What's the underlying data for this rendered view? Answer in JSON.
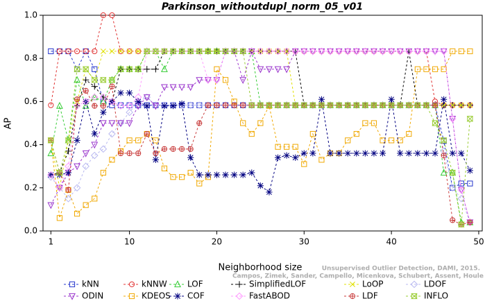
{
  "chart_data": {
    "type": "line",
    "title": "Parkinson_withoutdupl_norm_05_v01",
    "xlabel": "Neighborhood size",
    "ylabel": "AP",
    "annotations": [
      "Unsupervised Outlier Detection, DAMI, 2015.",
      "Campos, Zimek, Sander, Campello, Micenkova, Schubert, Assent, Houle"
    ],
    "x": [
      1,
      2,
      3,
      4,
      5,
      6,
      7,
      8,
      9,
      10,
      11,
      12,
      13,
      14,
      15,
      16,
      17,
      18,
      19,
      20,
      21,
      22,
      23,
      24,
      25,
      26,
      27,
      28,
      29,
      30,
      31,
      32,
      33,
      34,
      35,
      36,
      37,
      38,
      39,
      40,
      41,
      42,
      43,
      44,
      45,
      46,
      47,
      48,
      49
    ],
    "xlim": [
      0.1,
      50.4
    ],
    "ylim": [
      0,
      1
    ],
    "xticks": [
      1,
      10,
      20,
      30,
      40,
      50
    ],
    "yticks": [
      {
        "value": 0,
        "label": "0.0"
      },
      0.2,
      0.4,
      0.6,
      0.8,
      {
        "value": 1,
        "label": "1.0"
      }
    ],
    "series": [
      {
        "name": "kNN",
        "color": "#2233cc",
        "marker": "square",
        "values": [
          0.833,
          0.833,
          0.833,
          0.75,
          0.833,
          0.75,
          0.6,
          0.583,
          0.583,
          0.583,
          0.583,
          0.583,
          0.583,
          0.583,
          0.583,
          0.583,
          0.583,
          0.583,
          0.583,
          0.583,
          0.583,
          0.583,
          0.583,
          0.583,
          0.583,
          0.583,
          0.583,
          0.583,
          0.583,
          0.583,
          0.583,
          0.583,
          0.583,
          0.583,
          0.583,
          0.583,
          0.583,
          0.583,
          0.583,
          0.583,
          0.583,
          0.583,
          0.583,
          0.583,
          0.583,
          0.417,
          0.2,
          0.22,
          0.22
        ]
      },
      {
        "name": "kNNW",
        "color": "#e03030",
        "marker": "circle",
        "values": [
          0.583,
          0.833,
          0.833,
          0.833,
          0.833,
          0.833,
          1.0,
          1.0,
          0.833,
          0.833,
          0.833,
          0.833,
          0.833,
          0.833,
          0.833,
          0.833,
          0.833,
          0.833,
          0.833,
          0.833,
          0.833,
          0.833,
          0.833,
          0.833,
          0.833,
          0.833,
          0.833,
          0.833,
          0.833,
          0.833,
          0.833,
          0.833,
          0.833,
          0.833,
          0.833,
          0.833,
          0.833,
          0.833,
          0.833,
          0.833,
          0.833,
          0.833,
          0.833,
          0.833,
          0.6,
          0.583,
          0.583,
          0.583,
          0.583
        ]
      },
      {
        "name": "LOF",
        "color": "#33cc33",
        "marker": "triangle",
        "values": [
          0.36,
          0.58,
          0.42,
          0.7,
          0.58,
          0.62,
          0.6,
          0.7,
          0.75,
          0.75,
          0.75,
          0.833,
          0.833,
          0.75,
          0.833,
          0.833,
          0.833,
          0.833,
          0.833,
          0.833,
          0.833,
          0.833,
          0.833,
          0.833,
          0.583,
          0.583,
          0.583,
          0.583,
          0.583,
          0.583,
          0.583,
          0.583,
          0.583,
          0.583,
          0.583,
          0.583,
          0.583,
          0.583,
          0.583,
          0.583,
          0.583,
          0.583,
          0.583,
          0.583,
          0.583,
          0.27,
          0.27,
          0.04,
          0.04
        ]
      },
      {
        "name": "SimplifiedLOF",
        "color": "#000000",
        "marker": "plus",
        "values": [
          0.26,
          0.27,
          0.37,
          0.58,
          0.7,
          0.67,
          0.62,
          0.6,
          0.75,
          0.75,
          0.75,
          0.75,
          0.75,
          0.833,
          0.833,
          0.833,
          0.833,
          0.833,
          0.833,
          0.833,
          0.833,
          0.833,
          0.833,
          0.833,
          0.833,
          0.833,
          0.833,
          0.833,
          0.833,
          0.583,
          0.583,
          0.583,
          0.583,
          0.583,
          0.583,
          0.583,
          0.583,
          0.583,
          0.583,
          0.583,
          0.583,
          0.833,
          0.583,
          0.583,
          0.583,
          0.583,
          0.583,
          0.583,
          0.583
        ]
      },
      {
        "name": "LoOP",
        "color": "#e0e000",
        "marker": "cross",
        "values": [
          0.42,
          0.2,
          0.42,
          0.6,
          0.75,
          0.7,
          0.833,
          0.833,
          0.833,
          0.833,
          0.833,
          0.833,
          0.833,
          0.833,
          0.833,
          0.833,
          0.833,
          0.833,
          0.833,
          0.833,
          0.833,
          0.833,
          0.833,
          0.833,
          0.833,
          0.833,
          0.833,
          0.833,
          0.583,
          0.583,
          0.583,
          0.583,
          0.583,
          0.583,
          0.583,
          0.583,
          0.583,
          0.583,
          0.583,
          0.583,
          0.583,
          0.583,
          0.583,
          0.583,
          0.583,
          0.583,
          0.583,
          0.583,
          0.583
        ]
      },
      {
        "name": "LDOF",
        "color": "#b8b8f0",
        "marker": "diamond",
        "values": [
          0.25,
          0.2,
          0.15,
          0.2,
          0.3,
          0.35,
          0.38,
          0.45,
          0.5,
          0.55,
          0.6,
          0.62,
          0.583,
          0.583,
          0.583,
          0.583,
          0.583,
          0.583,
          0.583,
          0.583,
          0.583,
          0.583,
          0.583,
          0.583,
          0.583,
          0.583,
          0.583,
          0.583,
          0.583,
          0.583,
          0.583,
          0.583,
          0.583,
          0.583,
          0.583,
          0.583,
          0.583,
          0.583,
          0.583,
          0.583,
          0.583,
          0.583,
          0.583,
          0.583,
          0.583,
          0.37,
          0.2,
          0.15,
          0.04
        ]
      },
      {
        "name": "ODIN",
        "color": "#9933cc",
        "marker": "triangle-down",
        "values": [
          0.12,
          0.2,
          0.27,
          0.3,
          0.36,
          0.4,
          0.5,
          0.5,
          0.5,
          0.5,
          0.58,
          0.62,
          0.58,
          0.667,
          0.667,
          0.667,
          0.667,
          0.7,
          0.7,
          0.7,
          0.833,
          0.833,
          0.7,
          0.833,
          0.75,
          0.75,
          0.75,
          0.75,
          0.833,
          0.833,
          0.833,
          0.833,
          0.833,
          0.833,
          0.833,
          0.833,
          0.833,
          0.833,
          0.833,
          0.833,
          0.833,
          0.833,
          0.833,
          0.833,
          0.833,
          0.833,
          0.52,
          0.19,
          0.04
        ]
      },
      {
        "name": "KDEOS",
        "color": "#f0a800",
        "marker": "square",
        "values": [
          0.42,
          0.06,
          0.19,
          0.08,
          0.12,
          0.15,
          0.27,
          0.33,
          0.37,
          0.42,
          0.42,
          0.45,
          0.42,
          0.29,
          0.25,
          0.25,
          0.27,
          0.22,
          0.25,
          0.75,
          0.7,
          0.6,
          0.5,
          0.45,
          0.5,
          0.58,
          0.39,
          0.39,
          0.39,
          0.31,
          0.45,
          0.33,
          0.36,
          0.36,
          0.42,
          0.45,
          0.5,
          0.5,
          0.42,
          0.42,
          0.42,
          0.45,
          0.75,
          0.75,
          0.75,
          0.75,
          0.833,
          0.833,
          0.833
        ]
      },
      {
        "name": "COF",
        "color": "#000080",
        "marker": "star",
        "values": [
          0.26,
          0.26,
          0.27,
          0.42,
          0.6,
          0.45,
          0.55,
          0.6,
          0.64,
          0.64,
          0.6,
          0.58,
          0.33,
          0.58,
          0.58,
          0.59,
          0.34,
          0.26,
          0.26,
          0.26,
          0.26,
          0.26,
          0.26,
          0.27,
          0.21,
          0.18,
          0.34,
          0.35,
          0.34,
          0.36,
          0.36,
          0.61,
          0.36,
          0.36,
          0.36,
          0.36,
          0.36,
          0.36,
          0.36,
          0.61,
          0.36,
          0.36,
          0.36,
          0.36,
          0.36,
          0.61,
          0.36,
          0.36,
          0.28
        ]
      },
      {
        "name": "FastABOD",
        "color": "#ff99ff",
        "marker": "diamond",
        "values": [
          0.26,
          0.2,
          0.3,
          0.58,
          0.6,
          0.62,
          0.62,
          0.6,
          0.58,
          0.58,
          0.62,
          0.833,
          0.833,
          0.833,
          0.833,
          0.833,
          0.833,
          0.833,
          0.7,
          0.7,
          0.833,
          0.833,
          0.833,
          0.833,
          0.833,
          0.833,
          0.833,
          0.833,
          0.833,
          0.833,
          0.833,
          0.833,
          0.833,
          0.833,
          0.833,
          0.833,
          0.833,
          0.833,
          0.833,
          0.833,
          0.833,
          0.833,
          0.833,
          0.833,
          0.833,
          0.833,
          0.52,
          0.19,
          0.04
        ]
      },
      {
        "name": "LDF",
        "color": "#c83a3a",
        "marker": "circle-plus",
        "values": [
          0.42,
          0.27,
          0.19,
          0.61,
          0.65,
          0.58,
          0.58,
          0.67,
          0.36,
          0.36,
          0.36,
          0.45,
          0.36,
          0.38,
          0.38,
          0.38,
          0.38,
          0.5,
          0.583,
          0.583,
          0.583,
          0.583,
          0.583,
          0.583,
          0.583,
          0.583,
          0.583,
          0.583,
          0.583,
          0.583,
          0.583,
          0.583,
          0.583,
          0.583,
          0.583,
          0.583,
          0.583,
          0.583,
          0.583,
          0.583,
          0.583,
          0.583,
          0.583,
          0.583,
          0.583,
          0.35,
          0.05,
          0.03,
          0.04
        ]
      },
      {
        "name": "INFLO",
        "color": "#99cc33",
        "marker": "hourglass",
        "values": [
          0.42,
          0.27,
          0.42,
          0.75,
          0.75,
          0.7,
          0.7,
          0.7,
          0.75,
          0.75,
          0.75,
          0.833,
          0.833,
          0.833,
          0.833,
          0.833,
          0.833,
          0.833,
          0.833,
          0.833,
          0.833,
          0.833,
          0.833,
          0.583,
          0.583,
          0.583,
          0.583,
          0.583,
          0.583,
          0.583,
          0.583,
          0.583,
          0.583,
          0.583,
          0.583,
          0.583,
          0.583,
          0.583,
          0.583,
          0.583,
          0.583,
          0.583,
          0.583,
          0.583,
          0.5,
          0.42,
          0.27,
          0.03,
          0.52
        ]
      }
    ]
  }
}
